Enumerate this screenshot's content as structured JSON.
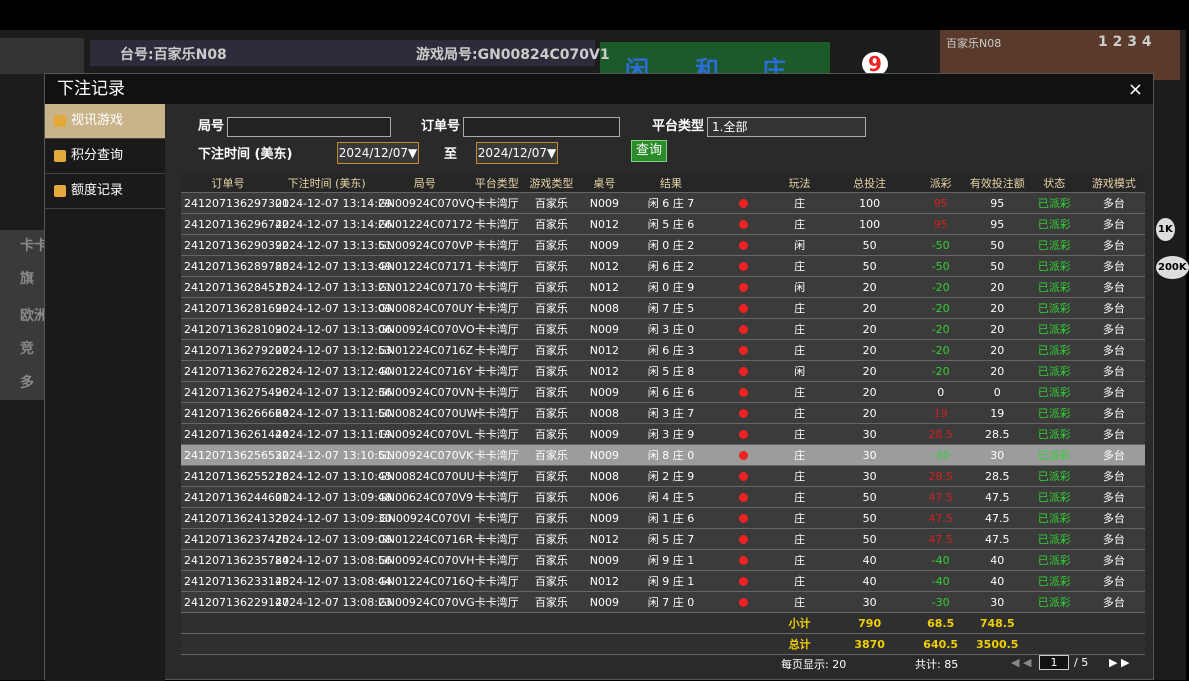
{
  "background": {
    "table_label": "台号:百家乐N08",
    "round_label": "游戏局号:GN00824C070V1",
    "bet_areas": [
      "闲",
      "和",
      "庄"
    ],
    "count_badge": "9",
    "video_label": "百家乐N08",
    "road_numbers": "1 2 3 4",
    "side_menu": [
      "卡卡",
      "旗",
      "欧洲",
      "竞",
      "多"
    ],
    "chips": [
      "1K",
      "200K"
    ]
  },
  "modal": {
    "title": "下注记录",
    "close": "×",
    "sidebar": [
      "视讯游戏",
      "积分查询",
      "额度记录"
    ],
    "filters": {
      "round_label": "局号",
      "order_label": "订单号",
      "platform_label": "平台类型",
      "platform_value": "1.全部",
      "time_label": "下注时间 (美东)",
      "date_from": "2024/12/07▼",
      "to_label": "至",
      "date_to": "2024/12/07▼",
      "search": "查询"
    },
    "table": {
      "headers": [
        "订单号",
        "下注时间 (美东)",
        "局号",
        "平台类型",
        "游戏类型",
        "桌号",
        "结果",
        "玩法",
        "总投注",
        "派彩",
        "有效投注额",
        "状态",
        "游戏模式"
      ],
      "rows": [
        [
          "241207136297301",
          "2024-12-07 13:14:29",
          "GN00924C070VQ",
          "卡卡湾厅",
          "百家乐",
          "N009",
          "闲 6 庄 7",
          "庄",
          100,
          95,
          95,
          "已派彩",
          "多台"
        ],
        [
          "241207136296742",
          "2024-12-07 13:14:26",
          "GN01224C07172",
          "卡卡湾厅",
          "百家乐",
          "N012",
          "闲 5 庄 6",
          "庄",
          100,
          95,
          95,
          "已派彩",
          "多台"
        ],
        [
          "241207136290392",
          "2024-12-07 13:13:51",
          "GN00924C070VP",
          "卡卡湾厅",
          "百家乐",
          "N009",
          "闲 0 庄 2",
          "闲",
          50,
          -50,
          50,
          "已派彩",
          "多台"
        ],
        [
          "241207136289785",
          "2024-12-07 13:13:49",
          "GN01224C07171",
          "卡卡湾厅",
          "百家乐",
          "N012",
          "闲 6 庄 2",
          "庄",
          50,
          -50,
          50,
          "已派彩",
          "多台"
        ],
        [
          "241207136284515",
          "2024-12-07 13:13:21",
          "GN01224C07170",
          "卡卡湾厅",
          "百家乐",
          "N012",
          "闲 0 庄 9",
          "闲",
          20,
          -20,
          20,
          "已派彩",
          "多台"
        ],
        [
          "241207136281699",
          "2024-12-07 13:13:09",
          "GN00824C070UY",
          "卡卡湾厅",
          "百家乐",
          "N008",
          "闲 7 庄 5",
          "庄",
          20,
          -20,
          20,
          "已派彩",
          "多台"
        ],
        [
          "241207136281090",
          "2024-12-07 13:13:06",
          "GN00924C070VO",
          "卡卡湾厅",
          "百家乐",
          "N009",
          "闲 3 庄 0",
          "庄",
          20,
          -20,
          20,
          "已派彩",
          "多台"
        ],
        [
          "241207136279207",
          "2024-12-07 13:12:53",
          "GN01224C0716Z",
          "卡卡湾厅",
          "百家乐",
          "N012",
          "闲 6 庄 3",
          "庄",
          20,
          -20,
          20,
          "已派彩",
          "多台"
        ],
        [
          "241207136276228",
          "2024-12-07 13:12:40",
          "GN01224C0716Y",
          "卡卡湾厅",
          "百家乐",
          "N012",
          "闲 5 庄 8",
          "闲",
          20,
          -20,
          20,
          "已派彩",
          "多台"
        ],
        [
          "241207136275496",
          "2024-12-07 13:12:36",
          "GN00924C070VN",
          "卡卡湾厅",
          "百家乐",
          "N009",
          "闲 6 庄 6",
          "庄",
          20,
          0,
          0,
          "已派彩",
          "多台"
        ],
        [
          "241207136266664",
          "2024-12-07 13:11:50",
          "GN00824C070UW",
          "卡卡湾厅",
          "百家乐",
          "N008",
          "闲 3 庄 7",
          "庄",
          20,
          19,
          19,
          "已派彩",
          "多台"
        ],
        [
          "241207136261444",
          "2024-12-07 13:11:19",
          "GN00924C070VL",
          "卡卡湾厅",
          "百家乐",
          "N009",
          "闲 3 庄 9",
          "庄",
          30,
          28.5,
          28.5,
          "已派彩",
          "多台"
        ],
        [
          "241207136256532",
          "2024-12-07 13:10:51",
          "GN00924C070VK",
          "卡卡湾厅",
          "百家乐",
          "N009",
          "闲 8 庄 0",
          "庄",
          30,
          -30,
          30,
          "已派彩",
          "多台"
        ],
        [
          "241207136255218",
          "2024-12-07 13:10:45",
          "GN00824C070UU",
          "卡卡湾厅",
          "百家乐",
          "N008",
          "闲 2 庄 9",
          "庄",
          30,
          28.5,
          28.5,
          "已派彩",
          "多台"
        ],
        [
          "241207136244601",
          "2024-12-07 13:09:48",
          "GN00624C070V9",
          "卡卡湾厅",
          "百家乐",
          "N006",
          "闲 4 庄 5",
          "庄",
          50,
          47.5,
          47.5,
          "已派彩",
          "多台"
        ],
        [
          "241207136241329",
          "2024-12-07 13:09:30",
          "GN00924C070VI",
          "卡卡湾厅",
          "百家乐",
          "N009",
          "闲 1 庄 6",
          "庄",
          50,
          47.5,
          47.5,
          "已派彩",
          "多台"
        ],
        [
          "241207136237475",
          "2024-12-07 13:09:08",
          "GN01224C0716R",
          "卡卡湾厅",
          "百家乐",
          "N012",
          "闲 5 庄 7",
          "庄",
          50,
          47.5,
          47.5,
          "已派彩",
          "多台"
        ],
        [
          "241207136235784",
          "2024-12-07 13:08:56",
          "GN00924C070VH",
          "卡卡湾厅",
          "百家乐",
          "N009",
          "闲 9 庄 1",
          "庄",
          40,
          -40,
          40,
          "已派彩",
          "多台"
        ],
        [
          "241207136233145",
          "2024-12-07 13:08:44",
          "GN01224C0716Q",
          "卡卡湾厅",
          "百家乐",
          "N012",
          "闲 9 庄 1",
          "庄",
          40,
          -40,
          40,
          "已派彩",
          "多台"
        ],
        [
          "241207136229147",
          "2024-12-07 13:08:23",
          "GN00924C070VG",
          "卡卡湾厅",
          "百家乐",
          "N009",
          "闲 7 庄 0",
          "庄",
          30,
          -30,
          30,
          "已派彩",
          "多台"
        ]
      ],
      "subtotal": {
        "label": "小计",
        "bet": 790,
        "payout": 68.5,
        "valid": 748.5
      },
      "total": {
        "label": "总计",
        "bet": 3870,
        "payout": 640.5,
        "valid": 3500.5
      }
    },
    "footer": {
      "per_page": "每页显示: 20",
      "count": "共计: 85",
      "page": "1",
      "pages": "/ 5"
    }
  }
}
